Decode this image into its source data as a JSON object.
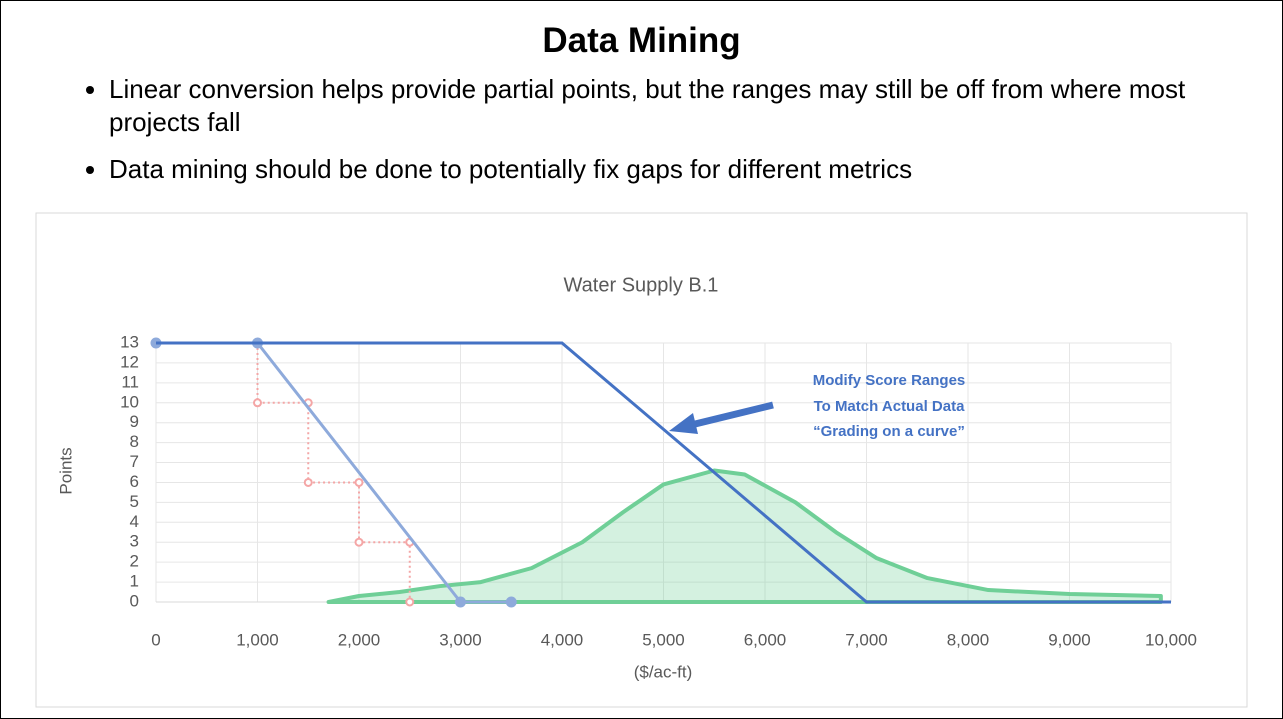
{
  "slide": {
    "title": "Data Mining",
    "bullets": [
      "Linear conversion helps provide partial points, but the ranges may still be off from where most projects fall",
      "Data mining should be done to potentially fix gaps for different metrics"
    ]
  },
  "chart_data": {
    "type": "line",
    "title": "Water Supply B.1",
    "x_label": "($/ac-ft)",
    "y_label": "Points",
    "xlim": [
      0,
      10000
    ],
    "xticks": [
      0,
      {
        "value": 1000,
        "label": "1,000"
      },
      {
        "value": 2000,
        "label": "2,000"
      },
      {
        "value": 3000,
        "label": "3,000"
      },
      {
        "value": 4000,
        "label": "4,000"
      },
      {
        "value": 5000,
        "label": "5,000"
      },
      {
        "value": 6000,
        "label": "6,000"
      },
      {
        "value": 7000,
        "label": "7,000"
      },
      {
        "value": 8000,
        "label": "8,000"
      },
      {
        "value": 9000,
        "label": "9,000"
      },
      {
        "value": 10000,
        "label": "10,000"
      }
    ],
    "ylim": [
      0,
      13
    ],
    "yticks": [
      0,
      1,
      2,
      3,
      4,
      5,
      6,
      7,
      8,
      9,
      10,
      11,
      12,
      13
    ],
    "grid": true,
    "series": [
      {
        "kind": "area",
        "color": "#6fcf97",
        "x": [
          1700,
          2000,
          2400,
          2800,
          3200,
          3700,
          4200,
          4600,
          5000,
          5500,
          5800,
          6300,
          6700,
          7100,
          7600,
          8200,
          9000,
          9900
        ],
        "values": [
          0,
          0.3,
          0.5,
          0.8,
          1,
          1.7,
          3,
          4.5,
          5.9,
          6.6,
          6.4,
          5,
          3.5,
          2.2,
          1.2,
          0.6,
          0.4,
          0.3
        ]
      },
      {
        "kind": "line",
        "color": "#f4a6a6",
        "dashed": true,
        "markers": true,
        "x": [
          1000,
          1000,
          1500,
          1500,
          2000,
          2000,
          2500,
          2500
        ],
        "values": [
          13,
          10,
          10,
          6,
          6,
          3,
          3,
          0
        ]
      },
      {
        "kind": "line",
        "color": "#8eaadb",
        "markers": true,
        "x": [
          0,
          1000,
          3000,
          3500
        ],
        "values": [
          13,
          13,
          0,
          0
        ]
      },
      {
        "kind": "line",
        "color": "#4472c4",
        "markers": false,
        "x": [
          0,
          4000,
          7000,
          10000
        ],
        "values": [
          13,
          13,
          0,
          0
        ]
      }
    ],
    "annotation": [
      "Modify Score Ranges",
      "To Match Actual Data",
      "“Grading on a curve”"
    ]
  }
}
